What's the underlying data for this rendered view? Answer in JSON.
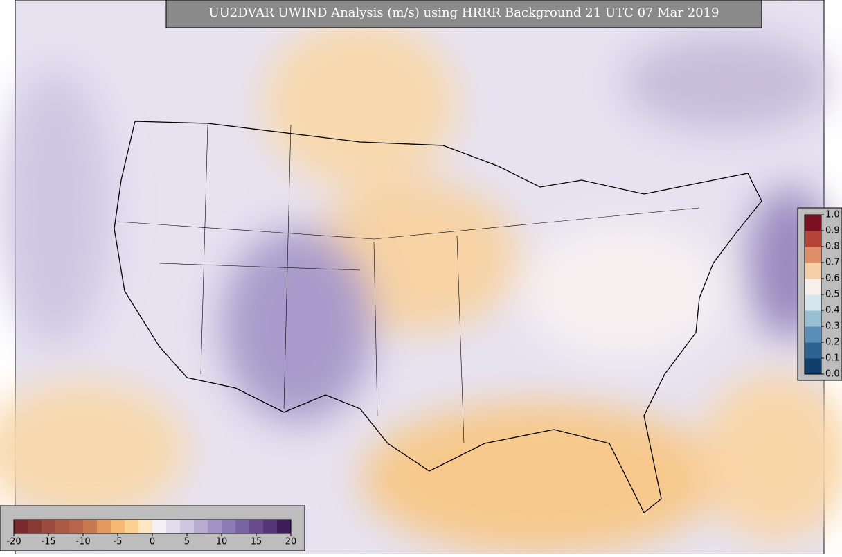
{
  "title": "UU2DVAR UWIND Analysis (m/s) using HRRR Background 21 UTC 07 Mar 2019",
  "wind_colorbar": {
    "lim": [
      -20,
      20
    ],
    "ticks": [
      -20,
      -15,
      -10,
      -5,
      0,
      5,
      10,
      15,
      20
    ],
    "colors": [
      "#7a2a2a",
      "#8a3a35",
      "#9c4a3e",
      "#ad5a45",
      "#b8654a",
      "#c9794f",
      "#e39a5c",
      "#f5b870",
      "#fcd08f",
      "#fde6c2",
      "#f4f1f6",
      "#e2dcec",
      "#cfc7e1",
      "#b8acd3",
      "#a194c5",
      "#8c7cb5",
      "#7a64a3",
      "#684b8f",
      "#55347a",
      "#3e1c5a"
    ]
  },
  "obs_colorbar": {
    "lim": [
      0,
      1
    ],
    "ticks": [
      {
        "value": 0,
        "label": "0.0"
      },
      {
        "value": 0.1,
        "label": "0.1"
      },
      {
        "value": 0.2,
        "label": "0.2"
      },
      {
        "value": 0.3,
        "label": "0.3"
      },
      {
        "value": 0.4,
        "label": "0.4"
      },
      {
        "value": 0.5,
        "label": "0.5"
      },
      {
        "value": 0.6,
        "label": "0.6"
      },
      {
        "value": 0.7,
        "label": "0.7"
      },
      {
        "value": 0.8,
        "label": "0.8"
      },
      {
        "value": 0.9,
        "label": "0.9"
      },
      {
        "value": 1,
        "label": "1.0"
      }
    ],
    "colors": [
      "#123e6b",
      "#2b6493",
      "#5b8fb5",
      "#98bfd4",
      "#d6e6ee",
      "#f7f0ea",
      "#f6cfa8",
      "#de8f69",
      "#b54338",
      "#7a1020"
    ]
  }
}
